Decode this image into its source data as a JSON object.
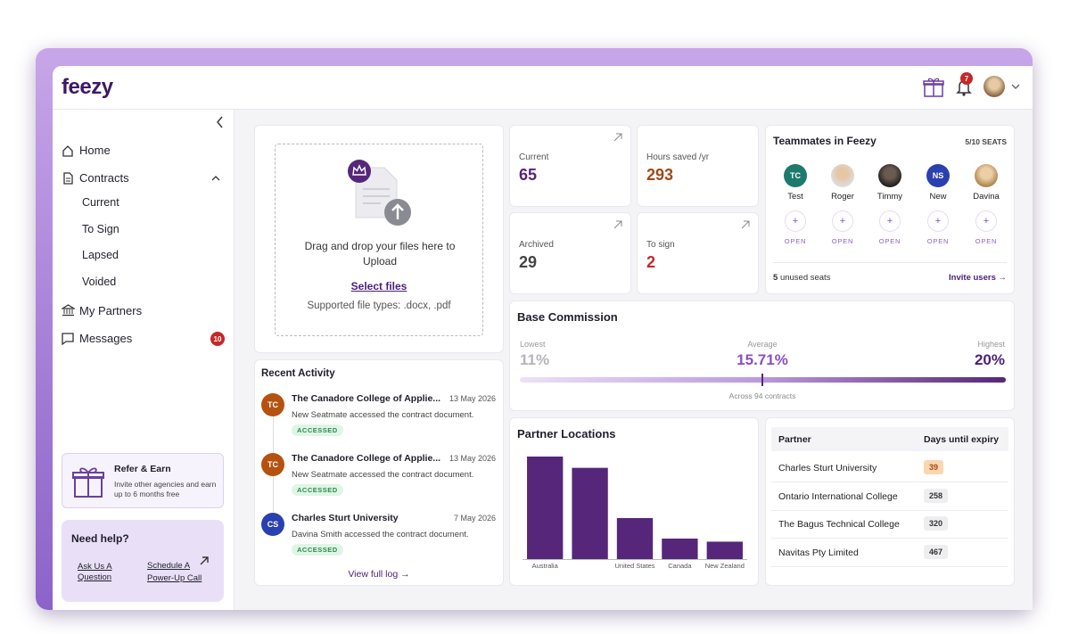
{
  "header": {
    "logo": "feezy",
    "notification_count": "7"
  },
  "sidebar": {
    "nav": [
      {
        "label": "Home"
      },
      {
        "label": "Contracts",
        "children": [
          "Current",
          "To Sign",
          "Lapsed",
          "Voided"
        ]
      },
      {
        "label": "My Partners"
      },
      {
        "label": "Messages",
        "badge": "10"
      }
    ],
    "refer": {
      "title": "Refer & Earn",
      "text": "Invite other agencies and earn up to 6 months free"
    },
    "help": {
      "title": "Need help?",
      "links": [
        "Ask Us A Question",
        "Schedule A Power-Up Call"
      ]
    }
  },
  "upload": {
    "text": "Drag and drop your files here to Upload",
    "link": "Select files",
    "types": "Supported file types: .docx, .pdf"
  },
  "stats": [
    {
      "label": "Current",
      "value": "65"
    },
    {
      "label": "Hours saved /yr",
      "value": "293"
    },
    {
      "label": "Archived",
      "value": "29"
    },
    {
      "label": "To sign",
      "value": "2"
    }
  ],
  "teammates": {
    "title": "Teammates in Feezy",
    "seats": "5/10 SEATS",
    "members": [
      {
        "initials": "TC",
        "name": "Test"
      },
      {
        "name": "Roger"
      },
      {
        "name": "Timmy"
      },
      {
        "initials": "NS",
        "name": "New"
      },
      {
        "name": "Davina"
      }
    ],
    "open_slots": [
      "OPEN",
      "OPEN",
      "OPEN",
      "OPEN",
      "OPEN"
    ],
    "unused_count": "5",
    "unused_text": "unused seats",
    "invite": "Invite users →"
  },
  "commission": {
    "title": "Base Commission",
    "lowest_label": "Lowest",
    "lowest": "11%",
    "average_label": "Average",
    "average": "15.71%",
    "highest_label": "Highest",
    "highest": "20%",
    "note": "Across 94 contracts"
  },
  "activity": {
    "title": "Recent Activity",
    "items": [
      {
        "initials": "TC",
        "title": "The Canadore College of Applie...",
        "date": "13 May 2026",
        "text": "New Seatmate accessed the contract document.",
        "status": "ACCESSED"
      },
      {
        "initials": "TC",
        "title": "The Canadore College of Applie...",
        "date": "13 May 2026",
        "text": "New Seatmate accessed the contract document.",
        "status": "ACCESSED"
      },
      {
        "initials": "CS",
        "title": "Charles Sturt University",
        "date": "7 May 2026",
        "text": "Davina Smith accessed the contract document.",
        "status": "ACCESSED"
      }
    ],
    "link": "View full log →"
  },
  "chart_data": {
    "type": "bar",
    "title": "Partner Locations",
    "categories": [
      "Australia",
      null,
      "United States",
      "Canada",
      "New Zealand"
    ],
    "values": [
      100,
      89,
      40,
      20,
      17
    ],
    "color": "#55267a"
  },
  "table": {
    "headers": [
      "Partner",
      "Days until expiry"
    ],
    "rows": [
      [
        "Charles Sturt University",
        "39"
      ],
      [
        "Ontario International College",
        "258"
      ],
      [
        "The Bagus Technical College",
        "320"
      ],
      [
        "Navitas Pty Limited",
        "467"
      ]
    ]
  }
}
